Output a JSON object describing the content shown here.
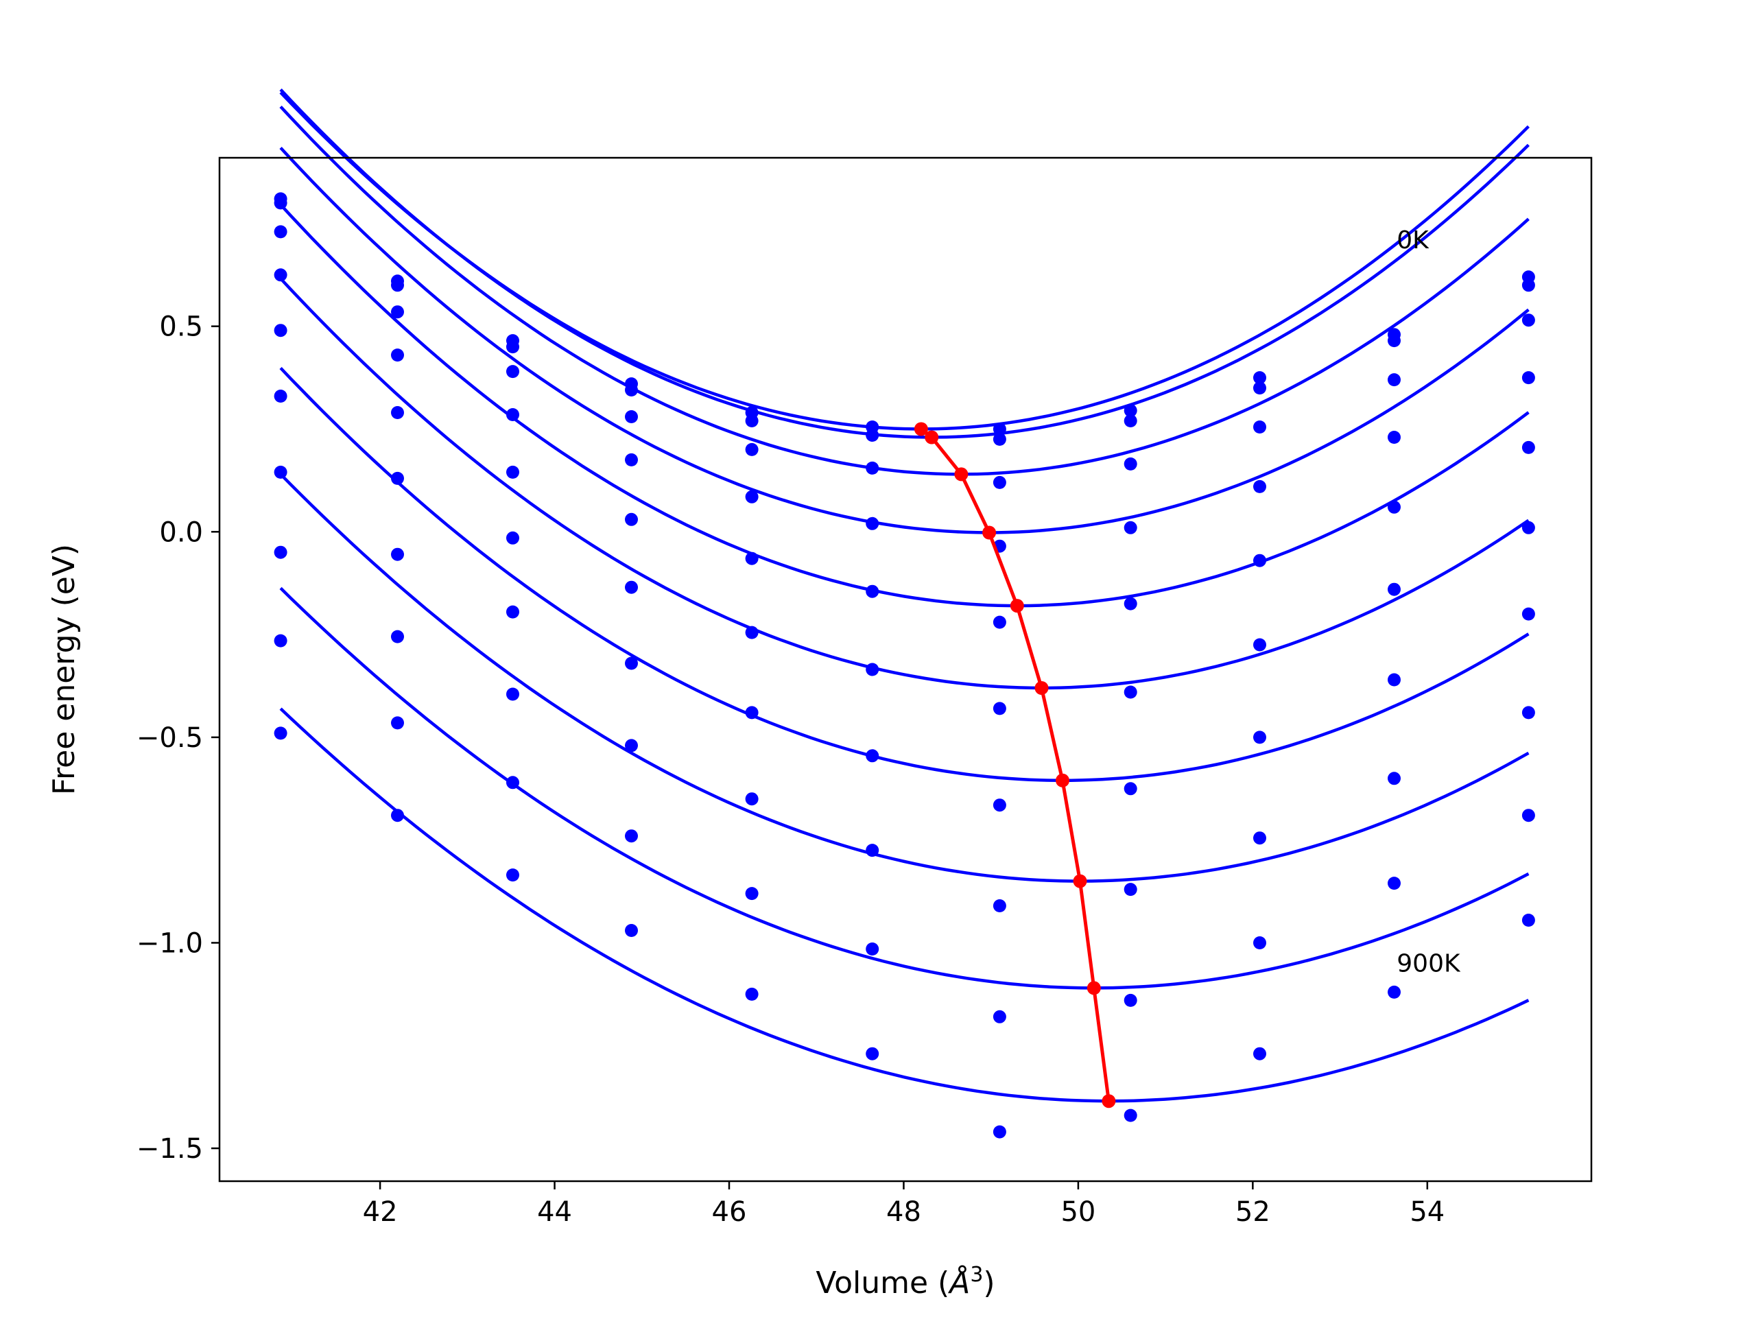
{
  "chart_data": {
    "type": "line",
    "xlabel": "Volume (",
    "xlabel_symbol": "Å",
    "xlabel_exp": "3",
    "xlabel_close": ")",
    "ylabel": "Free energy (eV)",
    "xlim": [
      40.16,
      55.88
    ],
    "ylim": [
      -1.58,
      0.91
    ],
    "xticks": [
      42,
      44,
      46,
      48,
      50,
      52,
      54
    ],
    "xtick_labels": [
      "42",
      "44",
      "46",
      "48",
      "50",
      "52",
      "54"
    ],
    "yticks": [
      0.5,
      0.0,
      -0.5,
      -1.0,
      -1.5
    ],
    "ytick_labels": [
      "0.5",
      "0.0",
      "−0.5",
      "−1.0",
      "−1.5"
    ],
    "grid": false,
    "annotations": [
      {
        "text": "0K",
        "x": 53.65,
        "y": 0.69
      },
      {
        "text": "900K",
        "x": 53.65,
        "y": -1.07
      }
    ],
    "colors": {
      "curves": "#0000ff",
      "equilibrium": "#ff0000"
    },
    "x": [
      40.86,
      42.2,
      43.52,
      44.88,
      46.26,
      47.64,
      49.1,
      50.6,
      52.08,
      53.62,
      55.16
    ],
    "series": [
      {
        "points": [
          0.81,
          0.61,
          0.465,
          0.36,
          0.29,
          0.255,
          0.25,
          0.295,
          0.375,
          0.48,
          0.62
        ],
        "fit": {
          "a": 0.0152,
          "v0": 48.2,
          "e0": 0.25
        }
      },
      {
        "points": [
          0.8,
          0.6,
          0.45,
          0.345,
          0.27,
          0.235,
          0.225,
          0.27,
          0.35,
          0.465,
          0.6
        ],
        "fit": {
          "a": 0.0152,
          "v0": 48.32,
          "e0": 0.23
        }
      },
      {
        "points": [
          0.73,
          0.535,
          0.39,
          0.28,
          0.2,
          0.155,
          0.12,
          0.165,
          0.255,
          0.37,
          0.515
        ],
        "fit": {
          "a": 0.0147,
          "v0": 48.66,
          "e0": 0.14
        }
      },
      {
        "points": [
          0.625,
          0.43,
          0.285,
          0.175,
          0.085,
          0.02,
          -0.035,
          0.01,
          0.11,
          0.23,
          0.375
        ],
        "fit": {
          "a": 0.0142,
          "v0": 48.98,
          "e0": -0.002
        }
      },
      {
        "points": [
          0.49,
          0.29,
          0.145,
          0.03,
          -0.065,
          -0.145,
          -0.22,
          -0.175,
          -0.07,
          0.06,
          0.205
        ],
        "fit": {
          "a": 0.0137,
          "v0": 49.3,
          "e0": -0.18
        }
      },
      {
        "points": [
          0.33,
          0.13,
          -0.015,
          -0.135,
          -0.245,
          -0.335,
          -0.43,
          -0.39,
          -0.275,
          -0.14,
          0.01
        ],
        "fit": {
          "a": 0.0131,
          "v0": 49.58,
          "e0": -0.38
        }
      },
      {
        "points": [
          0.145,
          -0.055,
          -0.195,
          -0.32,
          -0.44,
          -0.545,
          -0.665,
          -0.625,
          -0.5,
          -0.36,
          -0.2
        ],
        "fit": {
          "a": 0.0125,
          "v0": 49.82,
          "e0": -0.605
        }
      },
      {
        "points": [
          -0.05,
          -0.255,
          -0.395,
          -0.52,
          -0.65,
          -0.775,
          -0.91,
          -0.87,
          -0.745,
          -0.6,
          -0.44
        ],
        "fit": {
          "a": 0.0118,
          "v0": 50.02,
          "e0": -0.85
        }
      },
      {
        "points": [
          -0.265,
          -0.465,
          -0.61,
          -0.74,
          -0.88,
          -1.015,
          -1.18,
          -1.14,
          -1.0,
          -0.855,
          -0.69
        ],
        "fit": {
          "a": 0.0112,
          "v0": 50.18,
          "e0": -1.11
        }
      },
      {
        "points": [
          -0.49,
          -0.69,
          -0.835,
          -0.97,
          -1.125,
          -1.27,
          -1.46,
          -1.42,
          -1.27,
          -1.12,
          -0.945
        ],
        "fit": {
          "a": 0.0106,
          "v0": 50.35,
          "e0": -1.385
        }
      }
    ],
    "equilibrium": {
      "x": [
        48.2,
        48.32,
        48.66,
        48.98,
        49.3,
        49.58,
        49.82,
        50.02,
        50.18,
        50.35
      ],
      "y": [
        0.25,
        0.23,
        0.14,
        -0.002,
        -0.18,
        -0.38,
        -0.605,
        -0.85,
        -1.11,
        -1.385
      ]
    }
  }
}
